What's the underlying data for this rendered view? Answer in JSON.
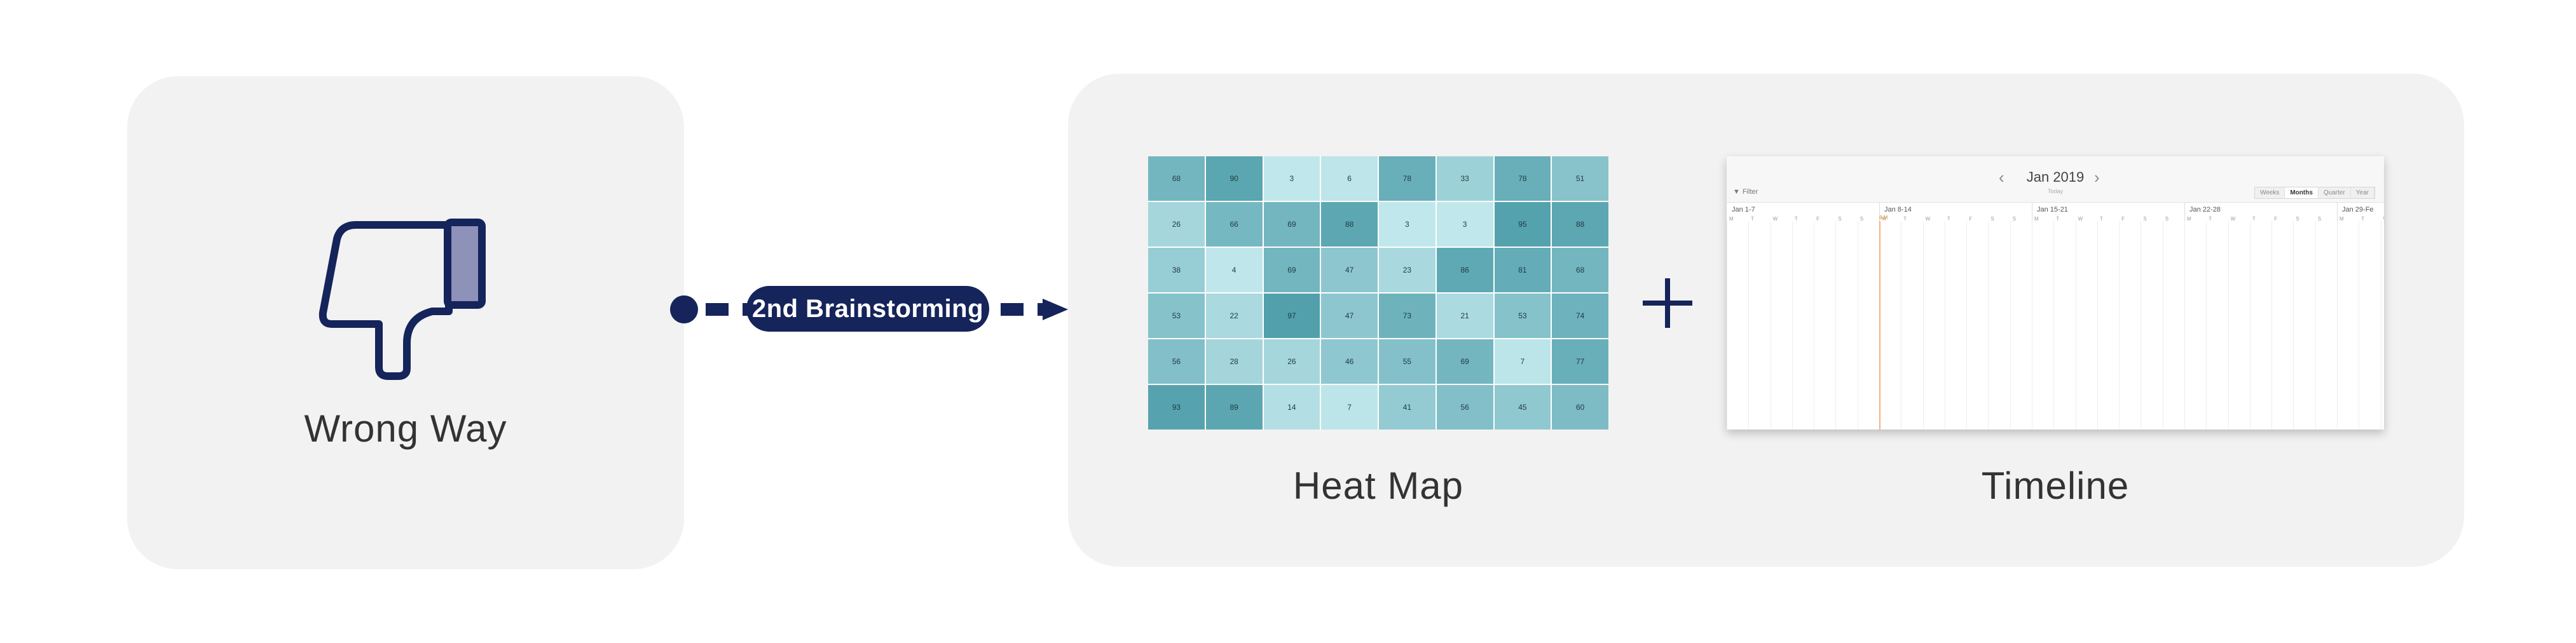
{
  "left_panel": {
    "caption": "Wrong Way",
    "icon": "thumbs-down-icon"
  },
  "connector": {
    "label": "2nd Brainstorming"
  },
  "right_panel": {
    "heatmap_caption": "Heat Map",
    "timeline_caption": "Timeline",
    "plus_icon": "plus-icon"
  },
  "heatmap": {
    "rows": [
      [
        68,
        90,
        3,
        6,
        78,
        33,
        78,
        51
      ],
      [
        26,
        66,
        69,
        88,
        3,
        3,
        95,
        88
      ],
      [
        38,
        4,
        69,
        47,
        23,
        86,
        81,
        68
      ],
      [
        53,
        22,
        97,
        47,
        73,
        21,
        53,
        74
      ],
      [
        56,
        28,
        26,
        46,
        55,
        69,
        7,
        77
      ],
      [
        93,
        89,
        14,
        7,
        41,
        56,
        45,
        60
      ]
    ]
  },
  "timeline": {
    "month": "Jan 2019",
    "today": "Today",
    "filter": "Filter",
    "views": [
      "Weeks",
      "Months",
      "Quarter",
      "Year"
    ],
    "weeks": [
      "Jan 1-7",
      "Jan 8-14",
      "Jan 15-21",
      "Jan 22-28",
      "Jan 29-Fe"
    ],
    "today_marker": "8 M",
    "day_letters": [
      "M",
      "T",
      "W",
      "T",
      "F",
      "S",
      "S"
    ]
  },
  "colors": {
    "navy": "#15245a",
    "panel_bg": "#f2f2f2",
    "thumb_fill": "#8e91b8"
  }
}
